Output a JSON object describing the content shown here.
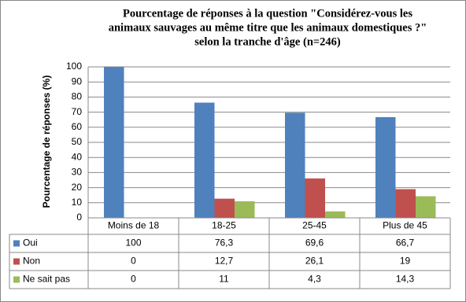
{
  "chart_data": {
    "type": "bar",
    "title": [
      "Pourcentage de réponses à la question \"Considérez-vous les",
      "animaux sauvages au même titre que les animaux domestiques ?\"",
      "selon la tranche d'âge (n=246)"
    ],
    "y_label": "Pourcentage de réponses (%)",
    "categories": [
      "Moins de 18",
      "18-25",
      "25-45",
      "Plus de 45"
    ],
    "series": [
      {
        "name": "Oui",
        "color": "#4f81bd",
        "values": [
          100,
          76.3,
          69.6,
          66.7
        ],
        "value_labels": [
          "100",
          "76,3",
          "69,6",
          "66,7"
        ]
      },
      {
        "name": "Non",
        "color": "#c0504d",
        "values": [
          0,
          12.7,
          26.1,
          19
        ],
        "value_labels": [
          "0",
          "12,7",
          "26,1",
          "19"
        ]
      },
      {
        "name": "Ne sait pas",
        "color": "#9bbb59",
        "values": [
          0,
          11,
          4.3,
          14.3
        ],
        "value_labels": [
          "0",
          "11",
          "4,3",
          "14,3"
        ]
      }
    ],
    "ylim": [
      0,
      100
    ],
    "yticks": [
      0,
      10,
      20,
      30,
      40,
      50,
      60,
      70,
      80,
      90,
      100
    ],
    "grid": true,
    "data_table": true
  }
}
